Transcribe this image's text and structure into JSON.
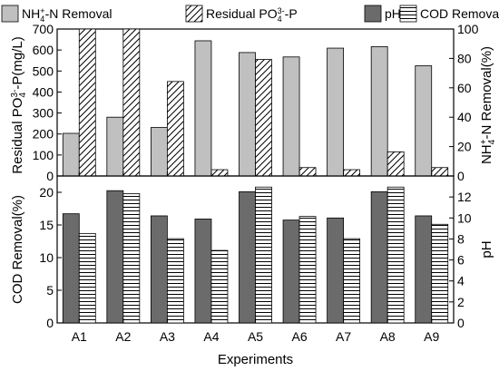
{
  "chart_data": [
    {
      "type": "bar",
      "categories": [
        "A1",
        "A2",
        "A3",
        "A4",
        "A5",
        "A6",
        "A7",
        "A8",
        "A9"
      ],
      "left_axis": {
        "label_parts": [
          "Residual PO",
          "4",
          "3-",
          "-P(mg/L)"
        ],
        "ylim": [
          0,
          700
        ],
        "ticks": [
          0,
          100,
          200,
          300,
          400,
          500,
          600,
          700
        ]
      },
      "right_axis": {
        "label_parts": [
          "NH",
          "4",
          "+",
          "-N Removal(%)"
        ],
        "ylim": [
          0,
          100
        ],
        "ticks": [
          0,
          20,
          40,
          60,
          80,
          100
        ]
      },
      "series": [
        {
          "name": "NH4+-N Removal",
          "name_parts": [
            "NH",
            "4",
            "+",
            "-N Removal"
          ],
          "axis": "right",
          "fill": "#c0c0c0",
          "pattern": "solid",
          "values": [
            29,
            40,
            33,
            92,
            84,
            81,
            87,
            88,
            75
          ]
        },
        {
          "name": "Residual PO43--P",
          "name_parts": [
            "Residual PO",
            "4",
            "3-",
            "-P"
          ],
          "axis": "left",
          "fill": "#ffffff",
          "pattern": "diagonal",
          "values": [
            700,
            700,
            450,
            30,
            555,
            40,
            30,
            115,
            40
          ]
        }
      ]
    },
    {
      "type": "bar",
      "categories": [
        "A1",
        "A2",
        "A3",
        "A4",
        "A5",
        "A6",
        "A7",
        "A8",
        "A9"
      ],
      "xlabel": "Experiments",
      "left_axis": {
        "label": "COD Removal(%)",
        "ylim": [
          0,
          22.5
        ],
        "ticks": [
          0,
          5,
          10,
          15,
          20
        ]
      },
      "right_axis": {
        "label": "pH",
        "ylim": [
          0,
          14
        ],
        "ticks": [
          0,
          2,
          4,
          6,
          8,
          10,
          12
        ]
      },
      "series": [
        {
          "name": "pH",
          "axis": "right",
          "fill": "#6b6b6b",
          "pattern": "solid",
          "values": [
            10.4,
            12.6,
            10.2,
            9.9,
            12.5,
            9.8,
            10.0,
            12.5,
            10.2
          ]
        },
        {
          "name": "COD Removal",
          "axis": "left",
          "fill": "#ffffff",
          "pattern": "horizontal",
          "values": [
            13.7,
            19.8,
            12.9,
            11.1,
            20.8,
            16.3,
            12.9,
            20.8,
            15.1
          ]
        }
      ]
    }
  ]
}
